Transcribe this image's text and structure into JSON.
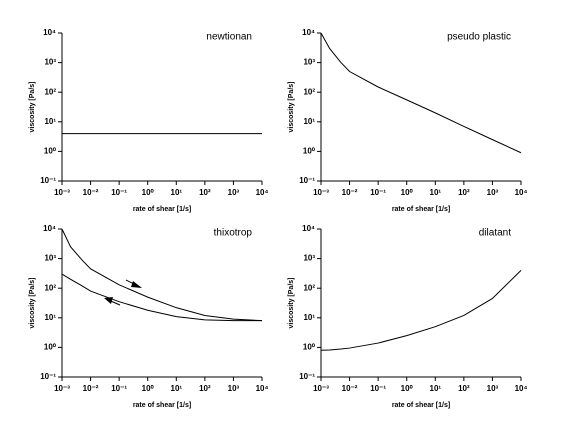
{
  "chart_data": [
    {
      "type": "line",
      "title": "newtionan",
      "xlabel": "rate of shear [1/s]",
      "ylabel": "viscosity [Pa/s]",
      "xscale": "log",
      "yscale": "log",
      "x": [
        0.001,
        10000
      ],
      "series": [
        {
          "color": "#000000",
          "values": [
            4,
            4
          ]
        }
      ],
      "xlim": [
        0.001,
        10000
      ],
      "ylim": [
        0.1,
        10000
      ],
      "xticks": [
        {
          "value": 0.001,
          "label": "10⁻³"
        },
        {
          "value": 0.01,
          "label": "10⁻²"
        },
        {
          "value": 0.1,
          "label": "10⁻¹"
        },
        {
          "value": 1,
          "label": "10⁰"
        },
        {
          "value": 10,
          "label": "10¹"
        },
        {
          "value": 100,
          "label": "10²"
        },
        {
          "value": 1000,
          "label": "10³"
        },
        {
          "value": 10000,
          "label": "10⁴"
        }
      ],
      "yticks": [
        {
          "value": 0.1,
          "label": "10⁻¹"
        },
        {
          "value": 1,
          "label": "10⁰"
        },
        {
          "value": 10,
          "label": "10¹"
        },
        {
          "value": 100,
          "label": "10²"
        },
        {
          "value": 1000,
          "label": "10³"
        },
        {
          "value": 10000,
          "label": "10⁴"
        }
      ]
    },
    {
      "type": "line",
      "title": "pseudo plastic",
      "xlabel": "rate of shear [1/s]",
      "ylabel": "viscosity [Pa/s]",
      "xscale": "log",
      "yscale": "log",
      "x": [
        0.001,
        0.002,
        0.005,
        0.01,
        0.1,
        1,
        10,
        100,
        1000,
        10000
      ],
      "series": [
        {
          "color": "#000000",
          "values": [
            10000,
            3000,
            1000,
            500,
            150,
            55,
            20,
            7,
            2.5,
            0.9
          ]
        }
      ],
      "xlim": [
        0.001,
        10000
      ],
      "ylim": [
        0.1,
        10000
      ],
      "xticks": [
        {
          "value": 0.001,
          "label": "10⁻³"
        },
        {
          "value": 0.01,
          "label": "10⁻²"
        },
        {
          "value": 0.1,
          "label": "10⁻¹"
        },
        {
          "value": 1,
          "label": "10⁰"
        },
        {
          "value": 10,
          "label": "10¹"
        },
        {
          "value": 100,
          "label": "10²"
        },
        {
          "value": 1000,
          "label": "10³"
        },
        {
          "value": 10000,
          "label": "10⁴"
        }
      ],
      "yticks": [
        {
          "value": 0.1,
          "label": "10⁻¹"
        },
        {
          "value": 1,
          "label": "10⁰"
        },
        {
          "value": 10,
          "label": "10¹"
        },
        {
          "value": 100,
          "label": "10²"
        },
        {
          "value": 1000,
          "label": "10³"
        },
        {
          "value": 10000,
          "label": "10⁴"
        }
      ]
    },
    {
      "type": "line",
      "title": "thixotrop",
      "xlabel": "rate of shear [1/s]",
      "ylabel": "viscosity [Pa/s]",
      "xscale": "log",
      "yscale": "log",
      "x": [
        0.001,
        0.002,
        0.005,
        0.01,
        0.1,
        1,
        10,
        100,
        1000,
        10000
      ],
      "series": [
        {
          "color": "#000000",
          "values": [
            10000,
            2500,
            900,
            450,
            130,
            50,
            22,
            12,
            9,
            8
          ]
        },
        {
          "color": "#000000",
          "values": [
            300,
            200,
            120,
            80,
            35,
            18,
            11,
            8.5,
            8,
            8
          ]
        }
      ],
      "xlim": [
        0.001,
        10000
      ],
      "ylim": [
        0.1,
        10000
      ],
      "xticks": [
        {
          "value": 0.001,
          "label": "10⁻³"
        },
        {
          "value": 0.01,
          "label": "10⁻²"
        },
        {
          "value": 0.1,
          "label": "10⁻¹"
        },
        {
          "value": 1,
          "label": "10⁰"
        },
        {
          "value": 10,
          "label": "10¹"
        },
        {
          "value": 100,
          "label": "10²"
        },
        {
          "value": 1000,
          "label": "10³"
        },
        {
          "value": 10000,
          "label": "10⁴"
        }
      ],
      "yticks": [
        {
          "value": 0.1,
          "label": "10⁻¹"
        },
        {
          "value": 1,
          "label": "10⁰"
        },
        {
          "value": 10,
          "label": "10¹"
        },
        {
          "value": 100,
          "label": "10²"
        },
        {
          "value": 1000,
          "label": "10³"
        },
        {
          "value": 10000,
          "label": "10⁴"
        }
      ]
    },
    {
      "type": "line",
      "title": "dilatant",
      "xlabel": "rate of shear [1/s]",
      "ylabel": "viscosity [Pa/s]",
      "xscale": "log",
      "yscale": "log",
      "x": [
        0.001,
        0.002,
        0.005,
        0.01,
        0.1,
        1,
        10,
        100,
        1000,
        10000
      ],
      "series": [
        {
          "color": "#000000",
          "values": [
            0.8,
            0.82,
            0.88,
            0.95,
            1.4,
            2.5,
            5,
            12,
            45,
            400
          ]
        }
      ],
      "xlim": [
        0.001,
        10000
      ],
      "ylim": [
        0.1,
        10000
      ],
      "xticks": [
        {
          "value": 0.001,
          "label": "10⁻³"
        },
        {
          "value": 0.01,
          "label": "10⁻²"
        },
        {
          "value": 0.1,
          "label": "10⁻¹"
        },
        {
          "value": 1,
          "label": "10⁰"
        },
        {
          "value": 10,
          "label": "10¹"
        },
        {
          "value": 100,
          "label": "10²"
        },
        {
          "value": 1000,
          "label": "10³"
        },
        {
          "value": 10000,
          "label": "10⁴"
        }
      ],
      "yticks": [
        {
          "value": 0.1,
          "label": "10⁻¹"
        },
        {
          "value": 1,
          "label": "10⁰"
        },
        {
          "value": 10,
          "label": "10¹"
        },
        {
          "value": 100,
          "label": "10²"
        },
        {
          "value": 1000,
          "label": "10³"
        },
        {
          "value": 10000,
          "label": "10⁴"
        }
      ]
    }
  ]
}
